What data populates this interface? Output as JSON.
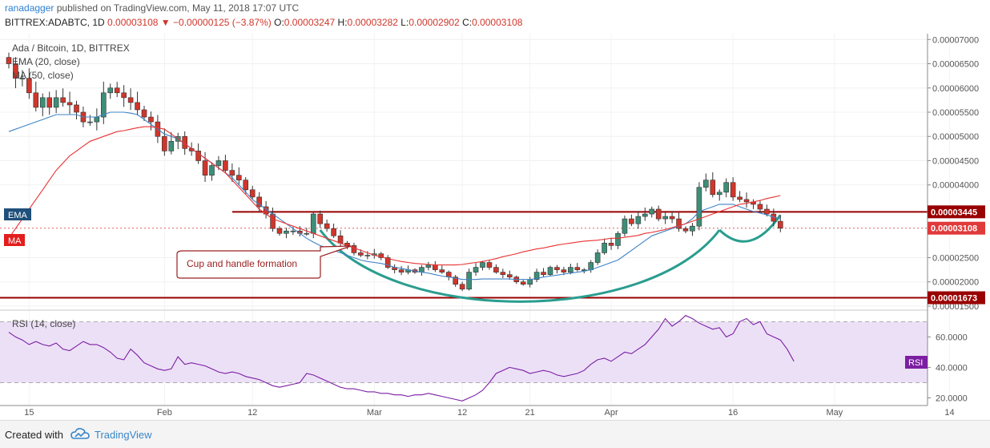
{
  "header": {
    "user": "ranadagger",
    "published_text": "published on TradingView.com, May 11, 2018 17:07 UTC",
    "symbol": "BITTREX:ADABTC, 1D",
    "last": "0.00003108",
    "arrow": "▼",
    "change": "−0.00000125 (−3.87%)",
    "o_label": "O:",
    "o_value": "0.00003247",
    "h_label": "H:",
    "h_value": "0.00003282",
    "l_label": "L:",
    "l_value": "0.00002902",
    "c_label": "C:",
    "c_value": "0.00003108"
  },
  "legend": {
    "title": "Ada / Bitcoin, 1D, BITTREX",
    "ema": "EMA (20, close)",
    "ma": "MA (50, close)",
    "rsi": "RSI (14, close)"
  },
  "badges": {
    "ema": "EMA",
    "ma": "MA",
    "rsi": "RSI",
    "resistance": "0.00003445",
    "last_price": "0.00003108",
    "support": "0.00001673"
  },
  "annotation": {
    "text": "Cup and handle formation"
  },
  "footer": {
    "created": "Created with",
    "brand": "TradingView"
  },
  "colors": {
    "up": "#3d8e78",
    "down": "#d0362b",
    "ema": "#3f84c6",
    "ma": "#e83232",
    "rsi": "#7b1fa2",
    "rsi_band": "#ece0f7",
    "cup": "#2a9d8f",
    "line": "#990000"
  },
  "chart_data": [
    {
      "type": "candlestick",
      "title": "Ada / Bitcoin, 1D, BITTREX",
      "ylim": [
        1.45e-05,
        7.12e-05
      ],
      "y_ticks": [
        "0.00007000",
        "0.00006500",
        "0.00006000",
        "0.00005500",
        "0.00005000",
        "0.00004500",
        "0.00004000",
        "0.00002500",
        "0.00002000",
        "0.00001500"
      ],
      "y_tick_values": [
        7e-05,
        6.5e-05,
        6e-05,
        5.5e-05,
        5e-05,
        4.5e-05,
        4e-05,
        2.5e-05,
        2e-05,
        1.5e-05
      ],
      "x_ticks": [
        {
          "label": "15",
          "i": 3
        },
        {
          "label": "Feb",
          "i": 23
        },
        {
          "label": "12",
          "i": 36
        },
        {
          "label": "Mar",
          "i": 54
        },
        {
          "label": "12",
          "i": 67
        },
        {
          "label": "21",
          "i": 77
        },
        {
          "label": "Apr",
          "i": 89
        },
        {
          "label": "16",
          "i": 107
        },
        {
          "label": "May",
          "i": 122
        },
        {
          "label": "14",
          "i": 139
        }
      ],
      "horizontal_lines": [
        {
          "label": "resistance",
          "value": 3.445e-05
        },
        {
          "label": "support",
          "value": 1.673e-05
        }
      ],
      "last_price_line": 3.108e-05,
      "close": [
        6.5,
        6.2,
        6.2,
        5.9,
        5.6,
        5.8,
        5.6,
        5.8,
        5.7,
        5.65,
        5.5,
        5.3,
        5.3,
        5.4,
        5.9,
        6.0,
        5.9,
        5.8,
        5.7,
        5.55,
        5.4,
        5.3,
        5.0,
        4.7,
        4.9,
        5.0,
        4.75,
        4.7,
        4.5,
        4.2,
        4.4,
        4.5,
        4.3,
        4.2,
        4.1,
        3.9,
        3.75,
        3.55,
        3.4,
        3.1,
        3.0,
        3.05,
        3.05,
        3.0,
        3.0,
        3.4,
        3.2,
        3.1,
        2.95,
        2.8,
        2.75,
        2.6,
        2.55,
        2.55,
        2.58,
        2.5,
        2.3,
        2.25,
        2.2,
        2.25,
        2.2,
        2.3,
        2.35,
        2.25,
        2.2,
        2.1,
        1.95,
        1.85,
        2.2,
        2.3,
        2.4,
        2.3,
        2.2,
        2.15,
        2.1,
        2.0,
        1.95,
        2.05,
        2.2,
        2.15,
        2.3,
        2.25,
        2.2,
        2.3,
        2.25,
        2.25,
        2.4,
        2.6,
        2.8,
        2.75,
        3.0,
        3.3,
        3.2,
        3.35,
        3.4,
        3.5,
        3.3,
        3.35,
        3.3,
        3.1,
        3.05,
        3.15,
        3.95,
        4.1,
        3.8,
        3.85,
        4.05,
        3.75,
        3.7,
        3.65,
        3.6,
        3.5,
        3.4,
        3.25,
        3.108
      ],
      "ema20_close": [
        5.1,
        5.15,
        5.2,
        5.25,
        5.3,
        5.35,
        5.4,
        5.45,
        5.45,
        5.45,
        5.45,
        5.4,
        5.4,
        5.4,
        5.45,
        5.5,
        5.5,
        5.5,
        5.48,
        5.45,
        5.35,
        5.25,
        5.15,
        5.05,
        5.0,
        4.95,
        4.85,
        4.75,
        4.65,
        4.55,
        4.45,
        4.35,
        4.25,
        4.15,
        4.0,
        3.85,
        3.7,
        3.6,
        3.5,
        3.4,
        3.3,
        3.2,
        3.1,
        3.0,
        2.9,
        2.82,
        2.75,
        2.7,
        2.65,
        2.6,
        2.55,
        2.5,
        2.45,
        2.42,
        2.4,
        2.38,
        2.35,
        2.3,
        2.28,
        2.25,
        2.22,
        2.2,
        2.18,
        2.15,
        2.12,
        2.1,
        2.08,
        2.05,
        2.05,
        2.05,
        2.06,
        2.06,
        2.06,
        2.06,
        2.06,
        2.05,
        2.05,
        2.05,
        2.07,
        2.1,
        2.12,
        2.14,
        2.16,
        2.18,
        2.2,
        2.22,
        2.25,
        2.3,
        2.35,
        2.4,
        2.45,
        2.55,
        2.65,
        2.75,
        2.85,
        2.95,
        3.0,
        3.05,
        3.1,
        3.15,
        3.2,
        3.3,
        3.45,
        3.5,
        3.55,
        3.6,
        3.6,
        3.6,
        3.55,
        3.5,
        3.45,
        3.42,
        3.38,
        3.34,
        3.3
      ],
      "ma50_close": [
        2.9,
        3.1,
        3.3,
        3.5,
        3.7,
        3.9,
        4.1,
        4.3,
        4.45,
        4.6,
        4.7,
        4.8,
        4.9,
        4.95,
        5.0,
        5.05,
        5.1,
        5.12,
        5.15,
        5.18,
        5.2,
        5.2,
        5.18,
        5.15,
        5.05,
        4.95,
        4.85,
        4.75,
        4.65,
        4.55,
        4.45,
        4.35,
        4.25,
        4.1,
        3.95,
        3.8,
        3.65,
        3.5,
        3.4,
        3.3,
        3.25,
        3.2,
        3.15,
        3.1,
        3.05,
        3.0,
        2.95,
        2.9,
        2.85,
        2.8,
        2.75,
        2.7,
        2.65,
        2.6,
        2.55,
        2.52,
        2.48,
        2.45,
        2.42,
        2.4,
        2.38,
        2.37,
        2.36,
        2.35,
        2.35,
        2.35,
        2.35,
        2.36,
        2.38,
        2.4,
        2.42,
        2.45,
        2.48,
        2.52,
        2.55,
        2.58,
        2.62,
        2.65,
        2.68,
        2.7,
        2.73,
        2.76,
        2.78,
        2.8,
        2.82,
        2.84,
        2.85,
        2.86,
        2.88,
        2.9,
        2.9,
        2.92,
        2.94,
        2.96,
        3.0,
        3.02,
        3.05,
        3.08,
        3.12,
        3.16,
        3.2,
        3.25,
        3.3,
        3.35,
        3.4,
        3.45,
        3.5,
        3.55,
        3.6,
        3.62,
        3.65,
        3.68,
        3.72,
        3.75,
        3.78
      ]
    },
    {
      "type": "line",
      "title": "RSI (14, close)",
      "ylim": [
        15,
        77
      ],
      "y_ticks": [
        "60.0000",
        "40.0000",
        "20.0000"
      ],
      "y_tick_values": [
        60,
        40,
        20
      ],
      "band": [
        30,
        70
      ],
      "series": [
        {
          "name": "RSI",
          "values": [
            63,
            60,
            58,
            55,
            57,
            55,
            54,
            56,
            52,
            51,
            54,
            57,
            55,
            55,
            53,
            50,
            46,
            45,
            52,
            48,
            43,
            41,
            39,
            38,
            39,
            47,
            42,
            43,
            42,
            41,
            39,
            37,
            36,
            37,
            36,
            34,
            33,
            32,
            30,
            28,
            27,
            28,
            29,
            30,
            36,
            35,
            33,
            31,
            29,
            27,
            26,
            26,
            25,
            24,
            24,
            23,
            23,
            22,
            22,
            21,
            22,
            22,
            23,
            22,
            21,
            20,
            19,
            18,
            20,
            22,
            25,
            30,
            36,
            38,
            40,
            39,
            38,
            36,
            37,
            38,
            37,
            35,
            34,
            35,
            36,
            38,
            42,
            45,
            46,
            44,
            47,
            50,
            49,
            52,
            55,
            60,
            65,
            72,
            67,
            70,
            74,
            72,
            69,
            67,
            65,
            66,
            60,
            62,
            70,
            72,
            68,
            70,
            62,
            60,
            58,
            52,
            44
          ]
        }
      ]
    }
  ]
}
